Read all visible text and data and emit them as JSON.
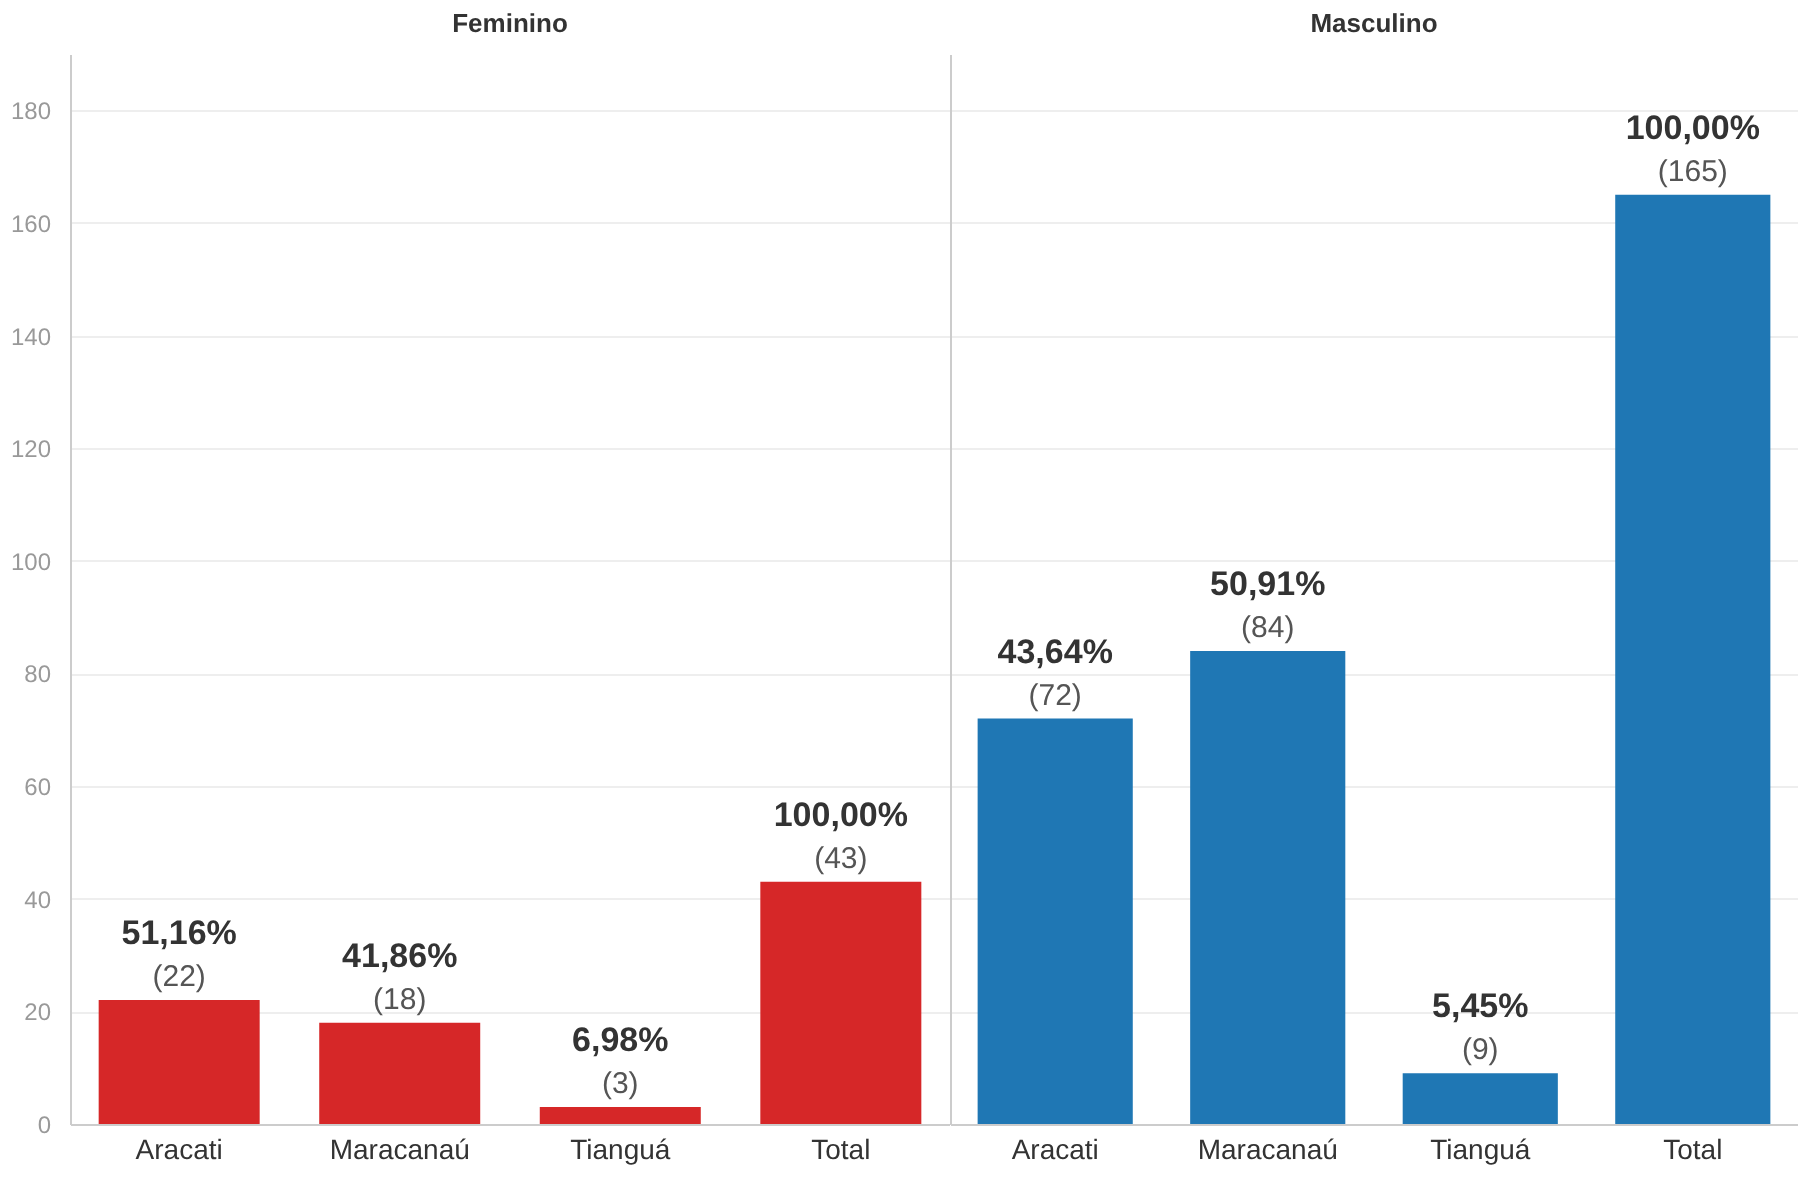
{
  "chart_data": [
    {
      "type": "bar",
      "title": "Feminino",
      "categories": [
        "Aracati",
        "Maracanaú",
        "Tianguá",
        "Total"
      ],
      "values": [
        22,
        18,
        3,
        43
      ],
      "color": "#d62728",
      "ylim": [
        0,
        190
      ],
      "yticks": [
        0,
        20,
        40,
        60,
        80,
        100,
        120,
        140,
        160,
        180
      ],
      "grid": "y",
      "value_labels": [
        "51,16%\n(22)",
        "41,86%\n(18)",
        "6,98%\n(3)",
        "100,00%\n(43)"
      ]
    },
    {
      "type": "bar",
      "title": "Masculino",
      "categories": [
        "Aracati",
        "Maracanaú",
        "Tianguá",
        "Total"
      ],
      "values": [
        72,
        84,
        9,
        165
      ],
      "color": "#1f77b4",
      "ylim": [
        0,
        190
      ],
      "yticks": [
        0,
        20,
        40,
        60,
        80,
        100,
        120,
        140,
        160,
        180
      ],
      "grid": "y",
      "tick_labels": "x",
      "value_labels": [
        "43,64%\n(72)",
        "50,91%\n(84)",
        "5,45%\n(9)",
        "100,00%\n(165)"
      ]
    }
  ]
}
